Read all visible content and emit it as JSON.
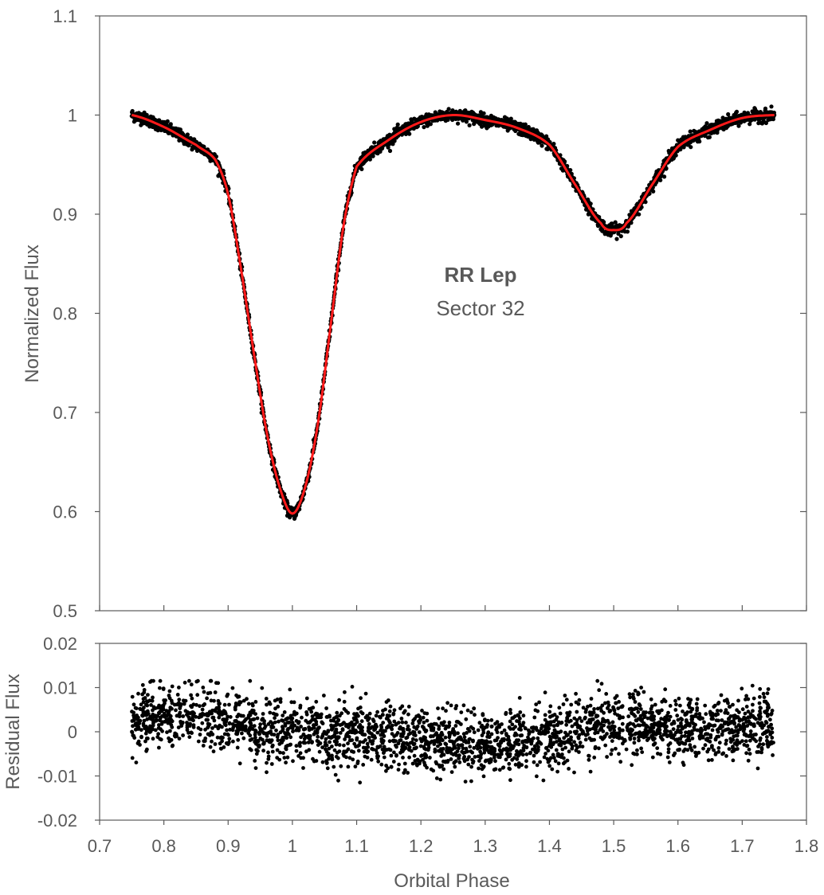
{
  "chart_data": [
    {
      "type": "scatter",
      "panel": "light-curve",
      "ylabel": "Normalized Flux",
      "xlim": [
        0.7,
        1.8
      ],
      "ylim": [
        0.5,
        1.1
      ],
      "x_ticks": [
        0.7,
        0.8,
        0.9,
        1.0,
        1.1,
        1.2,
        1.3,
        1.4,
        1.5,
        1.6,
        1.7,
        1.8
      ],
      "y_ticks": [
        0.5,
        0.6,
        0.7,
        0.8,
        0.9,
        1.0,
        1.1
      ],
      "y_tick_labels": [
        "0.5",
        "0.6",
        "0.7",
        "0.8",
        "0.9",
        "1",
        "1.1"
      ],
      "annotation": {
        "title": "RR Lep",
        "subtitle": "Sector 32"
      },
      "grid": false,
      "colors": {
        "data": "#000000",
        "model": "#ff1a1a",
        "axis": "#595959"
      },
      "model_curve": {
        "x": [
          0.75,
          0.8,
          0.85,
          0.88,
          0.9,
          0.92,
          0.94,
          0.96,
          0.98,
          1.0,
          1.02,
          1.04,
          1.06,
          1.08,
          1.1,
          1.15,
          1.2,
          1.25,
          1.3,
          1.35,
          1.4,
          1.44,
          1.48,
          1.5,
          1.52,
          1.56,
          1.6,
          1.65,
          1.7,
          1.75
        ],
        "y": [
          1.0,
          0.988,
          0.97,
          0.955,
          0.92,
          0.845,
          0.76,
          0.68,
          0.625,
          0.598,
          0.625,
          0.69,
          0.79,
          0.89,
          0.948,
          0.975,
          0.993,
          1.0,
          0.995,
          0.987,
          0.97,
          0.93,
          0.891,
          0.884,
          0.891,
          0.93,
          0.968,
          0.985,
          0.997,
          1.0
        ]
      },
      "scatter": {
        "x_range": [
          0.75,
          1.75
        ],
        "follows": "model_curve",
        "scatter_amplitude": 0.003
      }
    },
    {
      "type": "scatter",
      "panel": "residuals",
      "xlabel": "Orbital Phase",
      "ylabel": "Residual Flux",
      "xlim": [
        0.7,
        1.8
      ],
      "ylim": [
        -0.02,
        0.02
      ],
      "x_ticks": [
        0.7,
        0.8,
        0.9,
        1.0,
        1.1,
        1.2,
        1.3,
        1.4,
        1.5,
        1.6,
        1.7,
        1.8
      ],
      "x_tick_labels": [
        "0.7",
        "0.8",
        "0.9",
        "1",
        "1.1",
        "1.2",
        "1.3",
        "1.4",
        "1.5",
        "1.6",
        "1.7",
        "1.8"
      ],
      "y_ticks": [
        -0.02,
        -0.01,
        0,
        0.01,
        0.02
      ],
      "y_tick_labels": [
        "-0.02",
        "-0.01",
        "0",
        "0.01",
        "0.02"
      ],
      "grid": false,
      "colors": {
        "data": "#000000",
        "axis": "#595959"
      },
      "residual_trend": {
        "x": [
          0.75,
          0.85,
          0.9,
          1.0,
          1.1,
          1.2,
          1.3,
          1.4,
          1.5,
          1.6,
          1.7,
          1.75
        ],
        "y": [
          0.002,
          0.004,
          0.002,
          0.0,
          -0.001,
          -0.002,
          -0.003,
          -0.001,
          0.002,
          0.001,
          0.001,
          0.002
        ]
      },
      "scatter": {
        "x_range": [
          0.75,
          1.75
        ],
        "scatter_amplitude": 0.0035
      }
    }
  ]
}
